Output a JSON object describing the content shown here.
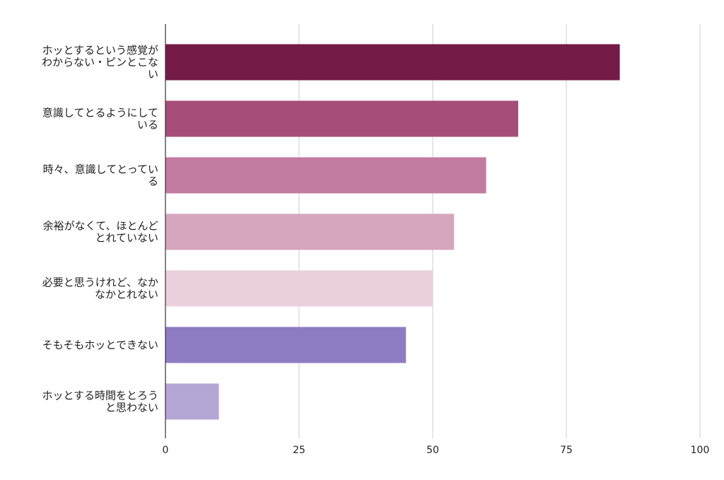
{
  "chart_data": {
    "type": "bar",
    "orientation": "horizontal",
    "title": "",
    "xlabel": "",
    "ylabel": "",
    "xlim": [
      0,
      100
    ],
    "xticks": [
      "0",
      "25",
      "50",
      "75",
      "100"
    ],
    "grid": "vertical",
    "legend": "none",
    "categories": [
      "ホッとするという感覚がわからない・ピンとこない",
      "意識してとるようにしている",
      "時々、意識してとっている",
      "余裕がなくて、ほとんどとれていない",
      "必要と思うけれど、なかなかとれない",
      "そもそもホッとできない",
      "ホッとする時間をとろうと思わない"
    ],
    "category_lines": [
      [
        "ホッとするという感覚が",
        "わからない・ピンとこな",
        "い"
      ],
      [
        "意識してとるようにして",
        "いる"
      ],
      [
        "時々、意識してとってい",
        "る"
      ],
      [
        "余裕がなくて、ほとんど",
        "とれていない"
      ],
      [
        "必要と思うけれど、なか",
        "なかとれない"
      ],
      [
        "そもそもホッとできない"
      ],
      [
        "ホッとする時間をとろう",
        "と思わない"
      ]
    ],
    "values": [
      85,
      66,
      60,
      54,
      50,
      45,
      10
    ],
    "colors": [
      "#741b47",
      "#a64d79",
      "#c27ba0",
      "#d5a6bd",
      "#ead1dc",
      "#8e7cc3",
      "#b4a7d6"
    ]
  }
}
